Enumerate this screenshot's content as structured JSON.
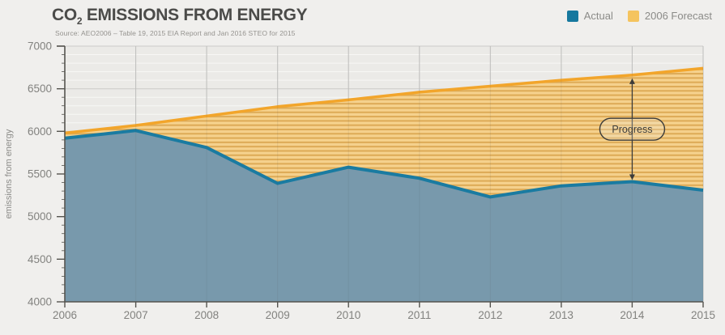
{
  "header": {
    "title_prefix": "CO",
    "title_subscript": "2",
    "title_suffix": " EMISSIONS FROM ENERGY",
    "source": "Source: AEO2006 – Table 19, 2015 EIA Report and Jan 2016 STEO for 2015"
  },
  "legend": {
    "items": [
      {
        "label": "Actual",
        "color": "#16789e"
      },
      {
        "label": "2006 Forecast",
        "color": "#f5c45e"
      }
    ]
  },
  "chart_data": {
    "type": "area",
    "x": [
      2006,
      2007,
      2008,
      2009,
      2010,
      2011,
      2012,
      2013,
      2014,
      2015
    ],
    "series": [
      {
        "name": "Actual",
        "values": [
          5920,
          6010,
          5810,
          5390,
          5580,
          5450,
          5230,
          5360,
          5410,
          5310
        ],
        "line_color": "#1a7ba1",
        "fill_color": "#7899ac"
      },
      {
        "name": "2006 Forecast",
        "values": [
          5980,
          6070,
          6180,
          6290,
          6370,
          6460,
          6530,
          6600,
          6660,
          6740
        ],
        "line_color": "#f2a52b",
        "fill_light": "#f6d088",
        "fill_stripe": "#dca74e"
      }
    ],
    "title": "CO2 Emissions from Energy",
    "xlabel": "",
    "ylabel": "emissions from energy",
    "ylim": [
      4000,
      7000
    ],
    "ytick_step": 500,
    "minor_step": 100,
    "grid": true,
    "legend_position": "top-right",
    "annotation": {
      "label": "Progress",
      "x": 2014,
      "from_series": "2006 Forecast",
      "to_series": "Actual"
    },
    "colors": {
      "plot_bg": "#ebeae7",
      "page_bg": "#f0efed",
      "grid_major": "#cbcbc9",
      "grid_minor": "#f8f7f5",
      "axis": "#55544f",
      "tick_text": "#82827f",
      "annotation": "#3c3c3a"
    }
  }
}
